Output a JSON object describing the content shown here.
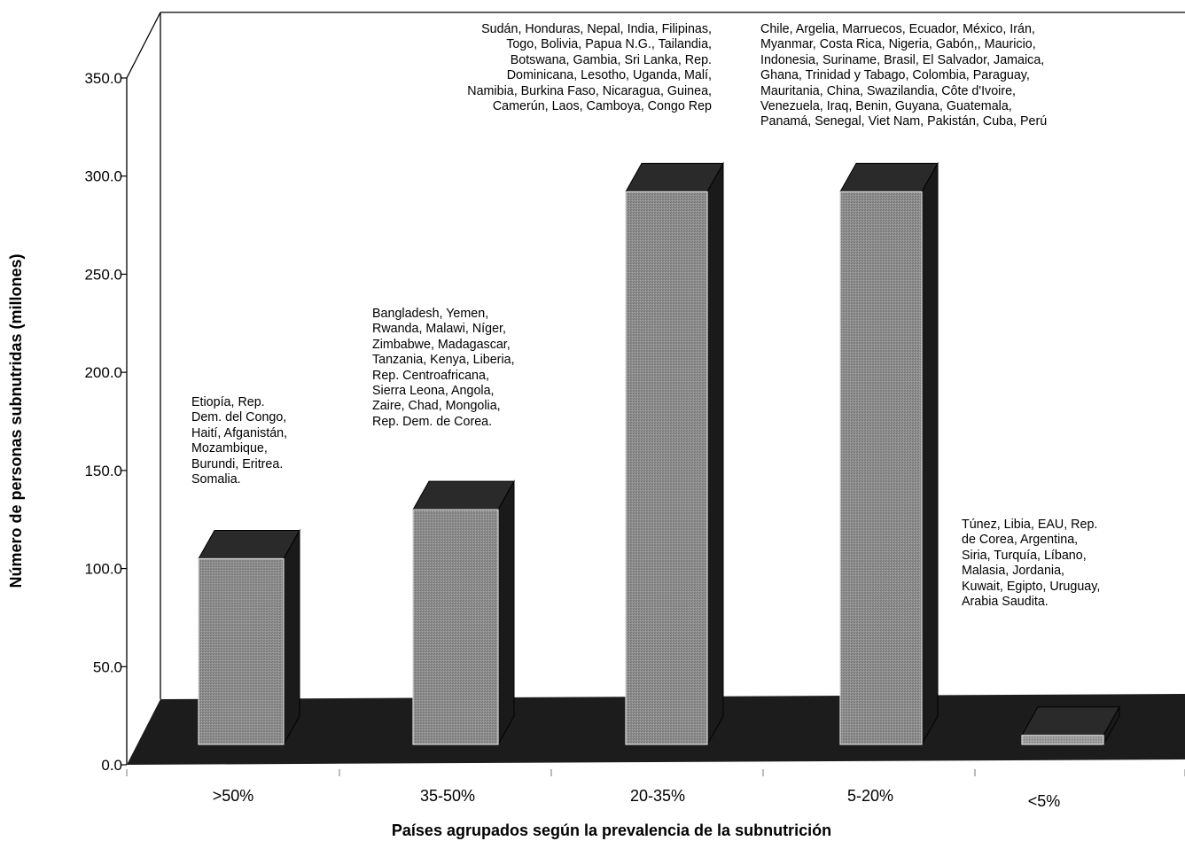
{
  "chart_data": {
    "type": "bar",
    "title": "",
    "xlabel": "Países agrupados según la prevalencia de la subnutrición",
    "ylabel": "Número de personas subnutridas (millones)",
    "ylim": [
      0,
      350
    ],
    "yticks": [
      "0.0",
      "50.0",
      "100.0",
      "150.0",
      "200.0",
      "250.0",
      "300.0",
      "350.0"
    ],
    "categories": [
      ">50%",
      "35-50%",
      "20-35%",
      "5-20%",
      "<5%"
    ],
    "values": [
      95,
      120,
      282,
      282,
      5
    ],
    "grid": false,
    "legend": "none",
    "style": "3d",
    "colors": {
      "bar_front": "#8a8a8a",
      "bar_side": "#1a1a1a",
      "bar_top": "#2a2a2a",
      "floor": "#1c1c1c"
    },
    "annotations": [
      {
        "category": ">50%",
        "lines": [
          "Etiopía, Rep.",
          "Dem. del Congo,",
          "Haití, Afganistán,",
          "Mozambique,",
          "Burundi, Eritrea.",
          "Somalia."
        ]
      },
      {
        "category": "35-50%",
        "lines": [
          "Bangladesh, Yemen,",
          "Rwanda, Malawi, Níger,",
          "Zimbabwe, Madagascar,",
          "Tanzania, Kenya, Liberia,",
          "Rep. Centroafricana,",
          "Sierra Leona, Angola,",
          "Zaire, Chad, Mongolia,",
          "Rep. Dem. de Corea."
        ]
      },
      {
        "category": "20-35%",
        "lines": [
          "Sudán, Honduras, Nepal, India, Filipinas,",
          "Togo, Bolivia, Papua N.G., Tailandia,",
          "Botswana, Gambia, Sri Lanka, Rep.",
          "Dominicana, Lesotho, Uganda, Malí,",
          "Namibia, Burkina Faso, Nicaragua, Guinea,",
          "Camerún, Laos, Camboya, Congo Rep"
        ]
      },
      {
        "category": "5-20%",
        "lines": [
          "Chile, Argelia, Marruecos, Ecuador, México, Irán,",
          "Myanmar, Costa Rica, Nigeria, Gabón,, Mauricio,",
          "Indonesia, Suriname, Brasil, El Salvador, Jamaica,",
          "Ghana, Trinidad y Tabago, Colombia, Paraguay,",
          "Mauritania, China, Swazilandia, Côte d'Ivoire,",
          "Venezuela, Iraq, Benin, Guyana, Guatemala,",
          "Panamá, Senegal, Viet Nam, Pakistán, Cuba, Perú"
        ]
      },
      {
        "category": "<5%",
        "lines": [
          "Túnez, Libia, EAU, Rep.",
          "de Corea, Argentina,",
          "Siria, Turquía, Líbano,",
          "Malasia, Jordania,",
          "Kuwait, Egipto, Uruguay,",
          "Arabia Saudita."
        ]
      }
    ]
  }
}
